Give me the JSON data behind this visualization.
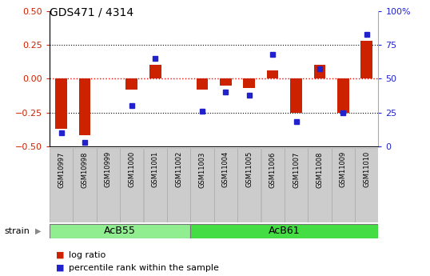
{
  "title": "GDS471 / 4314",
  "samples": [
    "GSM10997",
    "GSM10998",
    "GSM10999",
    "GSM11000",
    "GSM11001",
    "GSM11002",
    "GSM11003",
    "GSM11004",
    "GSM11005",
    "GSM11006",
    "GSM11007",
    "GSM11008",
    "GSM11009",
    "GSM11010"
  ],
  "log_ratio": [
    -0.37,
    -0.42,
    0.0,
    -0.08,
    0.1,
    0.0,
    -0.08,
    -0.05,
    -0.07,
    0.06,
    -0.25,
    0.1,
    -0.25,
    0.28
  ],
  "percentile": [
    10,
    3,
    null,
    30,
    65,
    null,
    26,
    40,
    38,
    68,
    18,
    57,
    25,
    83
  ],
  "groups": [
    {
      "label": "AcB55",
      "start": 0,
      "end": 5,
      "color": "#90ee90"
    },
    {
      "label": "AcB61",
      "start": 6,
      "end": 13,
      "color": "#44dd44"
    }
  ],
  "bar_color": "#cc2200",
  "dot_color": "#2222cc",
  "ylim_left": [
    -0.5,
    0.5
  ],
  "ylim_right": [
    0,
    100
  ],
  "yticks_left": [
    -0.5,
    -0.25,
    0.0,
    0.25,
    0.5
  ],
  "yticks_right": [
    0,
    25,
    50,
    75,
    100
  ],
  "ylabel_left_color": "#cc2200",
  "ylabel_right_color": "#2222cc",
  "strain_label": "strain",
  "legend_log_ratio": "log ratio",
  "legend_percentile": "percentile rank within the sample",
  "group_label_color": "#aaaaaa",
  "sample_box_color": "#cccccc",
  "sample_box_edge": "#aaaaaa"
}
